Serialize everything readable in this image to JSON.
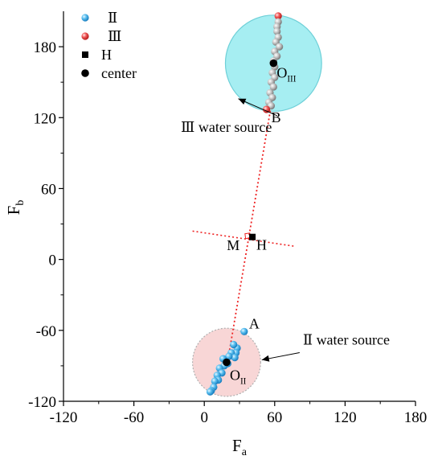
{
  "chart_data": {
    "type": "scatter",
    "xlabel": "F",
    "xlabel_sub": "a",
    "ylabel": "F",
    "ylabel_sub": "b",
    "xlim": [
      -120,
      180
    ],
    "ylim": [
      -120,
      210
    ],
    "x_ticks": [
      -120,
      -60,
      0,
      60,
      120,
      180
    ],
    "y_ticks": [
      -120,
      -60,
      0,
      60,
      120,
      180
    ],
    "grid": false,
    "legend_position": "top-left",
    "legend": [
      {
        "key": "II",
        "label": "Ⅱ",
        "marker": "sphere",
        "color": "#29a3e0"
      },
      {
        "key": "III",
        "label": "Ⅲ",
        "marker": "sphere",
        "color": "#ee3a3a"
      },
      {
        "key": "H",
        "label": "H",
        "marker": "square",
        "color": "#000000"
      },
      {
        "key": "center",
        "label": "center",
        "marker": "circle",
        "color": "#000000"
      }
    ],
    "series": [
      {
        "key": "II",
        "color": "#29a3e0",
        "points": [
          {
            "x": 34,
            "y": -61
          },
          {
            "x": 28,
            "y": -75
          },
          {
            "x": 27,
            "y": -79
          },
          {
            "x": 25,
            "y": -72
          },
          {
            "x": 23,
            "y": -79
          },
          {
            "x": 26,
            "y": -83
          },
          {
            "x": 21,
            "y": -82
          },
          {
            "x": 20,
            "y": -88
          },
          {
            "x": 16,
            "y": -84
          },
          {
            "x": 17,
            "y": -90
          },
          {
            "x": 13,
            "y": -92
          },
          {
            "x": 15,
            "y": -96
          },
          {
            "x": 11,
            "y": -98
          },
          {
            "x": 12,
            "y": -102
          },
          {
            "x": 9,
            "y": -103
          },
          {
            "x": 8,
            "y": -108
          },
          {
            "x": 6,
            "y": -111
          },
          {
            "x": 5,
            "y": -112
          }
        ]
      },
      {
        "key": "III",
        "color": "#9e9e9e",
        "endpoint_color": "#ee3a3a",
        "points": [
          {
            "x": 63,
            "y": 206
          },
          {
            "x": 63,
            "y": 201
          },
          {
            "x": 62,
            "y": 197
          },
          {
            "x": 62,
            "y": 193
          },
          {
            "x": 63,
            "y": 188
          },
          {
            "x": 61,
            "y": 184
          },
          {
            "x": 64,
            "y": 180
          },
          {
            "x": 60,
            "y": 176
          },
          {
            "x": 62,
            "y": 172
          },
          {
            "x": 59,
            "y": 168
          },
          {
            "x": 60,
            "y": 163
          },
          {
            "x": 58,
            "y": 158
          },
          {
            "x": 60,
            "y": 154
          },
          {
            "x": 57,
            "y": 150
          },
          {
            "x": 59,
            "y": 146
          },
          {
            "x": 56,
            "y": 141
          },
          {
            "x": 58,
            "y": 137
          },
          {
            "x": 55,
            "y": 133
          },
          {
            "x": 57,
            "y": 130
          },
          {
            "x": 53,
            "y": 127
          }
        ]
      }
    ],
    "centers": [
      {
        "key": "O_II",
        "x": 19,
        "y": -87,
        "label": "O",
        "sub": "II",
        "radius": 29,
        "fill": "#f8d6d6",
        "stroke": "#b0b0b0"
      },
      {
        "key": "O_III",
        "x": 59,
        "y": 166,
        "label": "O",
        "sub": "III",
        "radius": 41,
        "fill": "#a6eef2",
        "stroke": "#6fd0d8"
      }
    ],
    "H": {
      "x": 41,
      "y": 19,
      "label": "H"
    },
    "M": {
      "x": 37,
      "y": 20,
      "label": "M"
    },
    "A": {
      "x": 34,
      "y": -61,
      "label": "A"
    },
    "B": {
      "x": 53,
      "y": 127,
      "label": "B"
    },
    "connecting_line": {
      "from": [
        21,
        -80
      ],
      "to": [
        58,
        136
      ],
      "color": "#ee2222",
      "style": "dotted"
    },
    "perpendicular_line": {
      "from": [
        -10,
        24
      ],
      "to": [
        78,
        11
      ],
      "color": "#ee2222",
      "style": "dotted"
    },
    "annotations": [
      {
        "key": "water2",
        "text": "Ⅱ water source",
        "pos_x": 84,
        "pos_y": -72,
        "arrow_to": [
          49,
          -85
        ]
      },
      {
        "key": "water3",
        "text": "Ⅲ water source",
        "pos_x": -20,
        "pos_y": 108,
        "arrow_to": [
          29,
          136
        ]
      }
    ]
  }
}
